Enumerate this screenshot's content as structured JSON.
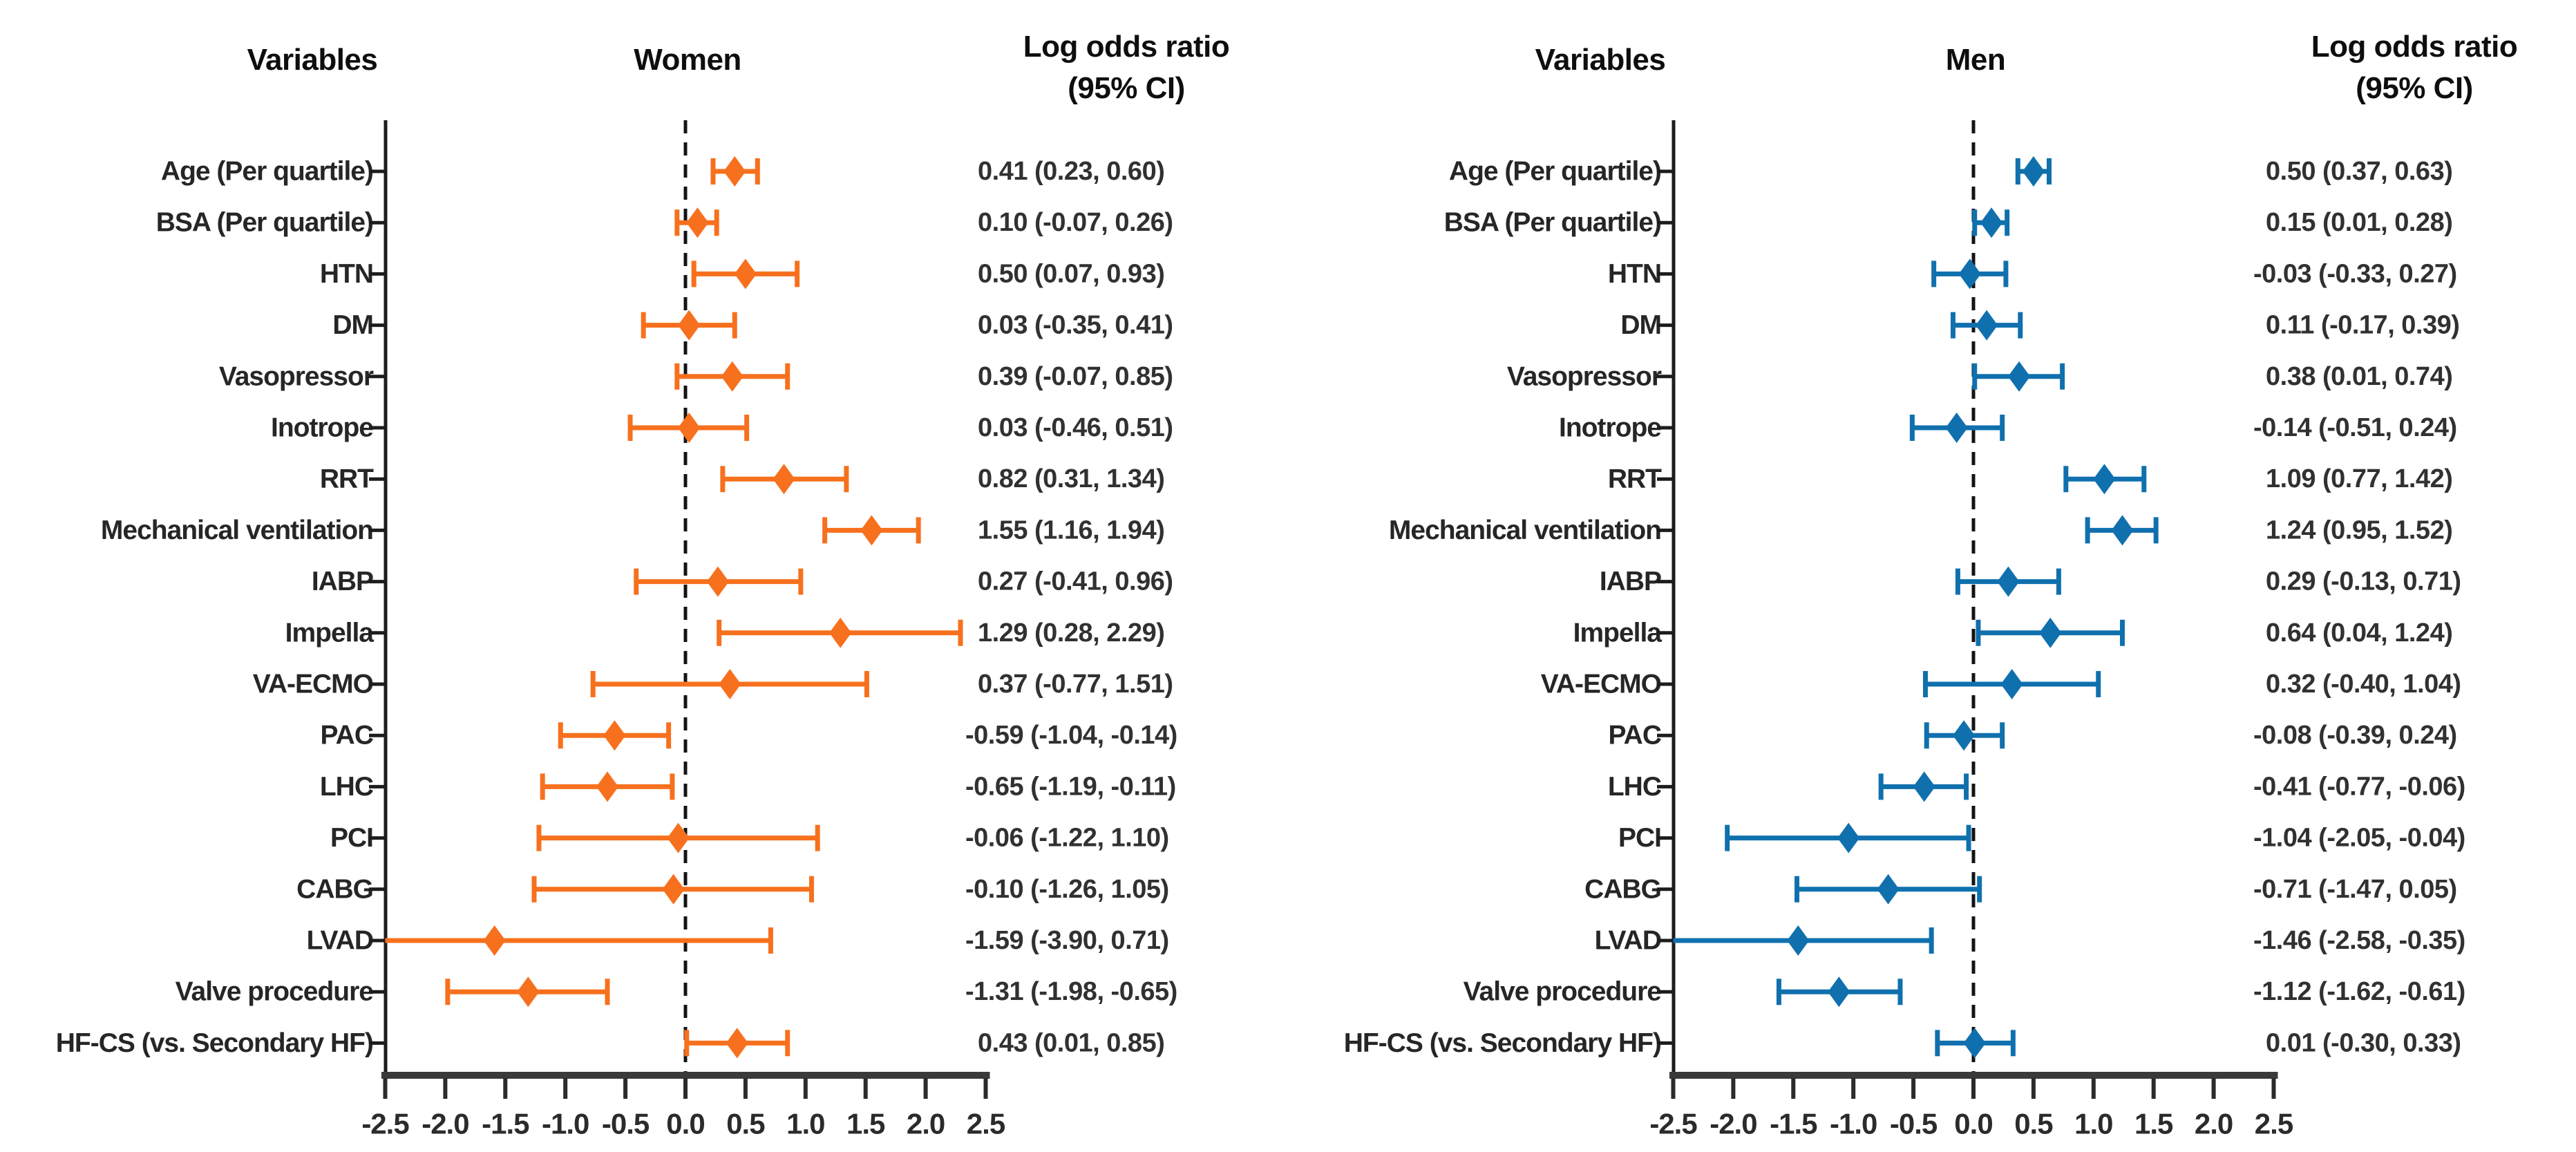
{
  "chart_data": [
    {
      "type": "forest",
      "title": "Women",
      "column_headers": {
        "variables": "Variables",
        "group": "Women",
        "measure_line1": "Log odds ratio",
        "measure_line2": "(95% CI)"
      },
      "color": "#F7701D",
      "axis": {
        "xlim": [
          -2.5,
          2.5
        ],
        "xticks": [
          "-2.5",
          "-2.0",
          "-1.5",
          "-1.0",
          "-0.5",
          "0.0",
          "0.5",
          "1.0",
          "1.5",
          "2.0",
          "2.5"
        ],
        "zero_line": 0,
        "grid": false
      },
      "rows": [
        {
          "variable": "Age (Per quartile)",
          "estimate": 0.41,
          "ci_low": 0.23,
          "ci_high": 0.6,
          "label": "0.41 (0.23, 0.60)"
        },
        {
          "variable": "BSA (Per quartile)",
          "estimate": 0.1,
          "ci_low": -0.07,
          "ci_high": 0.26,
          "label": "0.10 (-0.07, 0.26)"
        },
        {
          "variable": "HTN",
          "estimate": 0.5,
          "ci_low": 0.07,
          "ci_high": 0.93,
          "label": "0.50 (0.07, 0.93)"
        },
        {
          "variable": "DM",
          "estimate": 0.03,
          "ci_low": -0.35,
          "ci_high": 0.41,
          "label": "0.03 (-0.35, 0.41)"
        },
        {
          "variable": "Vasopressor",
          "estimate": 0.39,
          "ci_low": -0.07,
          "ci_high": 0.85,
          "label": "0.39 (-0.07, 0.85)"
        },
        {
          "variable": "Inotrope",
          "estimate": 0.03,
          "ci_low": -0.46,
          "ci_high": 0.51,
          "label": "0.03 (-0.46, 0.51)"
        },
        {
          "variable": "RRT",
          "estimate": 0.82,
          "ci_low": 0.31,
          "ci_high": 1.34,
          "label": "0.82 (0.31, 1.34)"
        },
        {
          "variable": "Mechanical ventilation",
          "estimate": 1.55,
          "ci_low": 1.16,
          "ci_high": 1.94,
          "label": "1.55 (1.16, 1.94)"
        },
        {
          "variable": "IABP",
          "estimate": 0.27,
          "ci_low": -0.41,
          "ci_high": 0.96,
          "label": "0.27 (-0.41, 0.96)"
        },
        {
          "variable": "Impella",
          "estimate": 1.29,
          "ci_low": 0.28,
          "ci_high": 2.29,
          "label": "1.29 (0.28, 2.29)"
        },
        {
          "variable": "VA-ECMO",
          "estimate": 0.37,
          "ci_low": -0.77,
          "ci_high": 1.51,
          "label": "0.37 (-0.77, 1.51)"
        },
        {
          "variable": "PAC",
          "estimate": -0.59,
          "ci_low": -1.04,
          "ci_high": -0.14,
          "label": "-0.59 (-1.04, -0.14)"
        },
        {
          "variable": "LHC",
          "estimate": -0.65,
          "ci_low": -1.19,
          "ci_high": -0.11,
          "label": "-0.65 (-1.19, -0.11)"
        },
        {
          "variable": "PCI",
          "estimate": -0.06,
          "ci_low": -1.22,
          "ci_high": 1.1,
          "label": "-0.06 (-1.22, 1.10)"
        },
        {
          "variable": "CABG",
          "estimate": -0.1,
          "ci_low": -1.26,
          "ci_high": 1.05,
          "label": "-0.10 (-1.26, 1.05)"
        },
        {
          "variable": "LVAD",
          "estimate": -1.59,
          "ci_low": -3.9,
          "ci_high": 0.71,
          "label": "-1.59 (-3.90, 0.71)"
        },
        {
          "variable": "Valve procedure",
          "estimate": -1.31,
          "ci_low": -1.98,
          "ci_high": -0.65,
          "label": "-1.31 (-1.98, -0.65)"
        },
        {
          "variable": "HF-CS (vs. Secondary HF)",
          "estimate": 0.43,
          "ci_low": 0.01,
          "ci_high": 0.85,
          "label": "0.43 (0.01, 0.85)"
        }
      ]
    },
    {
      "type": "forest",
      "title": "Men",
      "column_headers": {
        "variables": "Variables",
        "group": "Men",
        "measure_line1": "Log odds ratio",
        "measure_line2": "(95% CI)"
      },
      "color": "#1070AE",
      "axis": {
        "xlim": [
          -2.5,
          2.5
        ],
        "xticks": [
          "-2.5",
          "-2.0",
          "-1.5",
          "-1.0",
          "-0.5",
          "0.0",
          "0.5",
          "1.0",
          "1.5",
          "2.0",
          "2.5"
        ],
        "zero_line": 0,
        "grid": false
      },
      "rows": [
        {
          "variable": "Age (Per quartile)",
          "estimate": 0.5,
          "ci_low": 0.37,
          "ci_high": 0.63,
          "label": "0.50 (0.37, 0.63)"
        },
        {
          "variable": "BSA (Per quartile)",
          "estimate": 0.15,
          "ci_low": 0.01,
          "ci_high": 0.28,
          "label": "0.15 (0.01, 0.28)"
        },
        {
          "variable": "HTN",
          "estimate": -0.03,
          "ci_low": -0.33,
          "ci_high": 0.27,
          "label": "-0.03 (-0.33, 0.27)"
        },
        {
          "variable": "DM",
          "estimate": 0.11,
          "ci_low": -0.17,
          "ci_high": 0.39,
          "label": "0.11 (-0.17, 0.39)"
        },
        {
          "variable": "Vasopressor",
          "estimate": 0.38,
          "ci_low": 0.01,
          "ci_high": 0.74,
          "label": "0.38 (0.01, 0.74)"
        },
        {
          "variable": "Inotrope",
          "estimate": -0.14,
          "ci_low": -0.51,
          "ci_high": 0.24,
          "label": "-0.14 (-0.51, 0.24)"
        },
        {
          "variable": "RRT",
          "estimate": 1.09,
          "ci_low": 0.77,
          "ci_high": 1.42,
          "label": "1.09 (0.77, 1.42)"
        },
        {
          "variable": "Mechanical ventilation",
          "estimate": 1.24,
          "ci_low": 0.95,
          "ci_high": 1.52,
          "label": "1.24 (0.95, 1.52)"
        },
        {
          "variable": "IABP",
          "estimate": 0.29,
          "ci_low": -0.13,
          "ci_high": 0.71,
          "label": "0.29 (-0.13, 0.71)"
        },
        {
          "variable": "Impella",
          "estimate": 0.64,
          "ci_low": 0.04,
          "ci_high": 1.24,
          "label": "0.64 (0.04, 1.24)"
        },
        {
          "variable": "VA-ECMO",
          "estimate": 0.32,
          "ci_low": -0.4,
          "ci_high": 1.04,
          "label": "0.32 (-0.40, 1.04)"
        },
        {
          "variable": "PAC",
          "estimate": -0.08,
          "ci_low": -0.39,
          "ci_high": 0.24,
          "label": "-0.08 (-0.39, 0.24)"
        },
        {
          "variable": "LHC",
          "estimate": -0.41,
          "ci_low": -0.77,
          "ci_high": -0.06,
          "label": "-0.41 (-0.77, -0.06)"
        },
        {
          "variable": "PCI",
          "estimate": -1.04,
          "ci_low": -2.05,
          "ci_high": -0.04,
          "label": "-1.04 (-2.05, -0.04)"
        },
        {
          "variable": "CABG",
          "estimate": -0.71,
          "ci_low": -1.47,
          "ci_high": 0.05,
          "label": "-0.71 (-1.47, 0.05)"
        },
        {
          "variable": "LVAD",
          "estimate": -1.46,
          "ci_low": -2.58,
          "ci_high": -0.35,
          "label": "-1.46 (-2.58, -0.35)"
        },
        {
          "variable": "Valve procedure",
          "estimate": -1.12,
          "ci_low": -1.62,
          "ci_high": -0.61,
          "label": "-1.12 (-1.62, -0.61)"
        },
        {
          "variable": "HF-CS (vs. Secondary HF)",
          "estimate": 0.01,
          "ci_low": -0.3,
          "ci_high": 0.33,
          "label": "0.01 (-0.30, 0.33)"
        }
      ]
    }
  ]
}
